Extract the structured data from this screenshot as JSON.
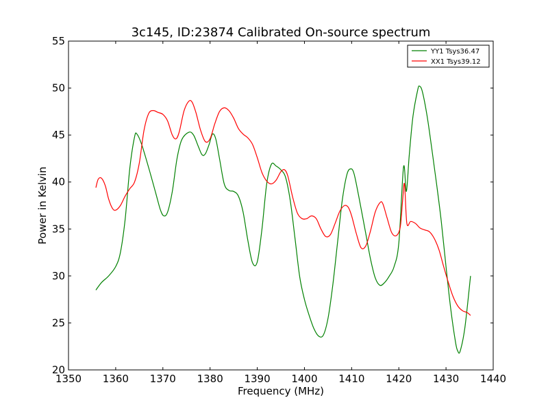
{
  "chart_data": {
    "type": "line",
    "title": "3c145, ID:23874 Calibrated On-source spectrum",
    "xlabel": "Frequency (MHz)",
    "ylabel": "Power in Kelvin",
    "xlim": [
      1350,
      1440
    ],
    "ylim": [
      20,
      55
    ],
    "xticks": [
      1350,
      1360,
      1370,
      1380,
      1390,
      1400,
      1410,
      1420,
      1430,
      1440
    ],
    "yticks": [
      20,
      25,
      30,
      35,
      40,
      45,
      50,
      55
    ],
    "grid": false,
    "legend_position": "top-right",
    "series": [
      {
        "name": "YY1 Tsys36.47",
        "color": "#008000",
        "x": [
          1355.8,
          1357,
          1358.5,
          1360,
          1361,
          1362,
          1363,
          1364,
          1364.5,
          1365.5,
          1367,
          1368.5,
          1369.5,
          1370.2,
          1371,
          1372,
          1373,
          1374,
          1375.5,
          1376.5,
          1377.5,
          1378.3,
          1379,
          1379.8,
          1380.5,
          1381.2,
          1382,
          1383,
          1384,
          1385,
          1386,
          1387,
          1388,
          1389,
          1390,
          1391,
          1392,
          1393,
          1394,
          1395,
          1396,
          1397,
          1398,
          1399,
          1400,
          1401,
          1402,
          1403,
          1404,
          1405,
          1406,
          1407,
          1408,
          1409,
          1409.8,
          1410.5,
          1411.5,
          1413,
          1414,
          1415,
          1416,
          1417,
          1418,
          1419,
          1420,
          1421,
          1421.6,
          1422.2,
          1423,
          1424,
          1424.4,
          1425,
          1426,
          1427,
          1428,
          1429,
          1430,
          1431,
          1432,
          1432.5,
          1433,
          1434,
          1435.2
        ],
        "y": [
          28.5,
          29.3,
          30.0,
          31.0,
          32.5,
          36.0,
          41.5,
          44.8,
          45.1,
          44.0,
          41.5,
          38.8,
          37.0,
          36.4,
          36.8,
          39.0,
          42.5,
          44.5,
          45.3,
          45.0,
          43.8,
          42.9,
          43.0,
          44.0,
          45.1,
          44.6,
          42.5,
          39.8,
          39.1,
          39.0,
          38.5,
          36.8,
          33.8,
          31.4,
          31.5,
          35.0,
          39.8,
          41.9,
          41.7,
          41.3,
          40.5,
          38.0,
          34.0,
          29.9,
          27.5,
          25.8,
          24.4,
          23.6,
          23.7,
          25.5,
          29.0,
          33.5,
          38.0,
          40.8,
          41.4,
          40.9,
          38.5,
          34.5,
          31.8,
          29.8,
          29.0,
          29.3,
          30.0,
          31.0,
          33.5,
          41.6,
          39.0,
          42.8,
          47.0,
          49.8,
          50.2,
          49.6,
          47.0,
          43.5,
          39.8,
          35.8,
          31.0,
          26.5,
          23.0,
          22.0,
          22.0,
          24.5,
          30.0
        ]
      },
      {
        "name": "XX1 Tsys39.12",
        "color": "#ff0000",
        "x": [
          1355.8,
          1356.3,
          1357,
          1357.8,
          1358.5,
          1359.3,
          1360,
          1361,
          1362,
          1363,
          1364,
          1365,
          1366,
          1367,
          1368,
          1369,
          1370,
          1371,
          1372,
          1372.8,
          1373.5,
          1374.5,
          1375.5,
          1376.2,
          1377,
          1378,
          1379,
          1380,
          1381,
          1382,
          1383,
          1384,
          1385,
          1386,
          1387,
          1388,
          1389,
          1390,
          1391,
          1392,
          1393,
          1394,
          1395,
          1395.8,
          1396.5,
          1397.5,
          1398.5,
          1399.5,
          1400.5,
          1401.5,
          1402.5,
          1403.5,
          1404.5,
          1405.5,
          1406.5,
          1407.5,
          1408.5,
          1409.3,
          1410,
          1411,
          1412,
          1413,
          1414,
          1415,
          1416,
          1416.6,
          1417.5,
          1418.5,
          1419.5,
          1420.3,
          1420.8,
          1421.2,
          1421.7,
          1422.5,
          1423.5,
          1424.5,
          1425.5,
          1426.5,
          1427.5,
          1428.5,
          1429.5,
          1430.5,
          1431.5,
          1432.5,
          1433.5,
          1434.5,
          1435.2
        ],
        "y": [
          39.4,
          40.3,
          40.4,
          39.6,
          38.2,
          37.2,
          37.0,
          37.5,
          38.5,
          39.3,
          40.0,
          42.0,
          45.5,
          47.3,
          47.6,
          47.4,
          47.2,
          46.5,
          45.0,
          44.6,
          45.4,
          47.6,
          48.6,
          48.5,
          47.4,
          45.5,
          44.3,
          44.6,
          46.2,
          47.5,
          47.9,
          47.6,
          46.8,
          45.7,
          45.1,
          44.7,
          44.0,
          42.6,
          41.0,
          40.1,
          39.8,
          40.2,
          41.1,
          41.3,
          40.6,
          38.4,
          36.7,
          36.1,
          36.1,
          36.4,
          36.1,
          35.0,
          34.2,
          34.4,
          35.6,
          36.9,
          37.5,
          37.3,
          36.4,
          34.5,
          33.0,
          33.2,
          34.8,
          36.8,
          37.8,
          37.7,
          36.2,
          34.6,
          34.3,
          35.2,
          38.0,
          39.8,
          35.6,
          35.8,
          35.6,
          35.1,
          34.9,
          34.7,
          34.0,
          32.8,
          31.0,
          29.3,
          27.8,
          26.8,
          26.3,
          26.1,
          25.8
        ]
      }
    ]
  }
}
